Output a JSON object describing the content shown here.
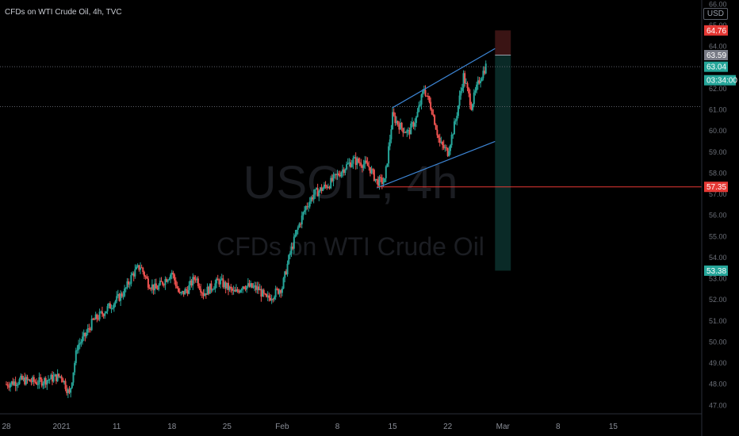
{
  "header": {
    "title": "CFDs on WTI Crude Oil, 4h, TVC",
    "currency": "USD"
  },
  "watermark": {
    "symbol": "USOIL, 4h",
    "description": "CFDs on WTI Crude Oil"
  },
  "colors": {
    "background": "#000000",
    "up": "#26a69a",
    "down": "#ef5350",
    "channel": "#3d86d6",
    "level_line": "#e53935",
    "stop_zone": "#3a1414",
    "target_zone": "#0a2a27"
  },
  "price_labels": [
    {
      "value": "64.76",
      "price": 64.76,
      "color": "#e53935"
    },
    {
      "value": "63.59",
      "price": 63.59,
      "color": "#787b86"
    },
    {
      "value": "63.04",
      "price": 63.04,
      "color": "#26a69a"
    },
    {
      "value": "03:34:00",
      "price": 62.4,
      "color": "#26a69a"
    },
    {
      "value": "57.35",
      "price": 57.35,
      "color": "#e53935"
    },
    {
      "value": "53.38",
      "price": 53.38,
      "color": "#26a69a"
    }
  ],
  "chart_data": {
    "type": "candlestick",
    "symbol": "USOIL",
    "timeframe": "4h",
    "y_ticks": [
      "66.00",
      "65.00",
      "64.00",
      "63.00",
      "62.00",
      "61.00",
      "60.00",
      "59.00",
      "58.00",
      "57.00",
      "56.00",
      "55.00",
      "54.00",
      "53.00",
      "52.00",
      "51.00",
      "50.00",
      "49.00",
      "48.00",
      "47.00"
    ],
    "ylim": [
      46.6,
      66.2
    ],
    "x_ticks": [
      {
        "label": "28",
        "date": "2020-12-28"
      },
      {
        "label": "2021",
        "date": "2021-01-04"
      },
      {
        "label": "11",
        "date": "2021-01-11"
      },
      {
        "label": "18",
        "date": "2021-01-18"
      },
      {
        "label": "25",
        "date": "2021-01-25"
      },
      {
        "label": "Feb",
        "date": "2021-02-01"
      },
      {
        "label": "8",
        "date": "2021-02-08"
      },
      {
        "label": "15",
        "date": "2021-02-15"
      },
      {
        "label": "22",
        "date": "2021-02-22"
      },
      {
        "label": "Mar",
        "date": "2021-03-01"
      },
      {
        "label": "8",
        "date": "2021-03-08"
      },
      {
        "label": "15",
        "date": "2021-03-15"
      }
    ],
    "xlim": [
      "2020-12-28",
      "2021-03-22"
    ],
    "close_path": [
      [
        "2020-12-28",
        48.0
      ],
      [
        "2020-12-30",
        48.2
      ],
      [
        "2021-01-01",
        48.1
      ],
      [
        "2021-01-04",
        48.4
      ],
      [
        "2021-01-05",
        47.5
      ],
      [
        "2021-01-06",
        49.8
      ],
      [
        "2021-01-07",
        50.3
      ],
      [
        "2021-01-08",
        51.0
      ],
      [
        "2021-01-09",
        51.3
      ],
      [
        "2021-01-11",
        52.0
      ],
      [
        "2021-01-12",
        52.4
      ],
      [
        "2021-01-13",
        53.2
      ],
      [
        "2021-01-14",
        53.6
      ],
      [
        "2021-01-15",
        52.8
      ],
      [
        "2021-01-16",
        52.5
      ],
      [
        "2021-01-18",
        53.3
      ],
      [
        "2021-01-19",
        52.2
      ],
      [
        "2021-01-20",
        52.5
      ],
      [
        "2021-01-21",
        53.1
      ],
      [
        "2021-01-22",
        52.3
      ],
      [
        "2021-01-24",
        52.9
      ],
      [
        "2021-01-25",
        52.6
      ],
      [
        "2021-01-26",
        52.3
      ],
      [
        "2021-01-27",
        52.7
      ],
      [
        "2021-01-28",
        52.6
      ],
      [
        "2021-01-29",
        52.5
      ],
      [
        "2021-01-30",
        52.0
      ],
      [
        "2021-02-01",
        52.6
      ],
      [
        "2021-02-02",
        54.2
      ],
      [
        "2021-02-03",
        55.4
      ],
      [
        "2021-02-04",
        56.4
      ],
      [
        "2021-02-05",
        57.0
      ],
      [
        "2021-02-07",
        57.5
      ],
      [
        "2021-02-08",
        57.9
      ],
      [
        "2021-02-09",
        58.3
      ],
      [
        "2021-02-10",
        58.6
      ],
      [
        "2021-02-11",
        58.5
      ],
      [
        "2021-02-12",
        58.3
      ],
      [
        "2021-02-13",
        57.6
      ],
      [
        "2021-02-14",
        57.6
      ],
      [
        "2021-02-15",
        60.7
      ],
      [
        "2021-02-16",
        60.2
      ],
      [
        "2021-02-17",
        59.9
      ],
      [
        "2021-02-18",
        60.6
      ],
      [
        "2021-02-19",
        62.0
      ],
      [
        "2021-02-20",
        61.0
      ],
      [
        "2021-02-21",
        59.4
      ],
      [
        "2021-02-22",
        59.0
      ],
      [
        "2021-02-23",
        60.5
      ],
      [
        "2021-02-24",
        62.6
      ],
      [
        "2021-02-25",
        61.2
      ],
      [
        "2021-02-26",
        62.4
      ],
      [
        "2021-02-27",
        63.2
      ]
    ],
    "channel_upper": [
      [
        "2021-02-15",
        61.1
      ],
      [
        "2021-02-28",
        63.9
      ]
    ],
    "channel_lower": [
      [
        "2021-02-13",
        57.3
      ],
      [
        "2021-02-28",
        59.5
      ]
    ],
    "horizontal_levels": [
      57.35
    ],
    "dotted_levels": [
      63.04,
      61.15
    ],
    "position": {
      "start": "2021-02-28",
      "end": "2021-03-02",
      "entry": 63.59,
      "stop": 64.76,
      "target": 53.38
    }
  }
}
